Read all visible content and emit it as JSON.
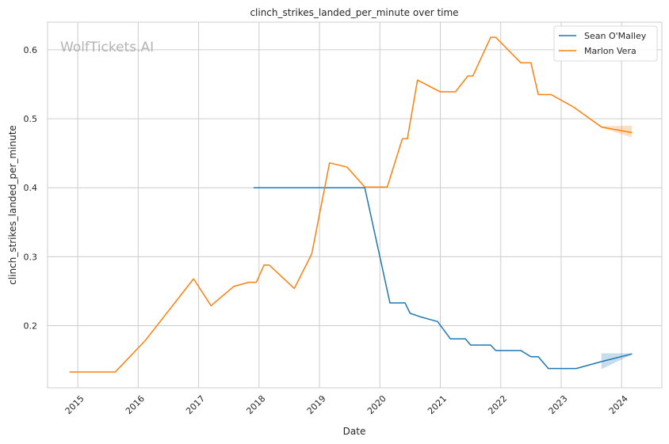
{
  "chart_data": {
    "type": "line",
    "title": "clinch_strikes_landed_per_minute over time",
    "xlabel": "Date",
    "ylabel": "clinch_strikes_landed_per_minute",
    "watermark": "WolfTickets.AI",
    "xlim": [
      "2014-07-01",
      "2024-09-01"
    ],
    "ylim": [
      0.11,
      0.64
    ],
    "x_ticks": [
      "2015",
      "2016",
      "2017",
      "2018",
      "2019",
      "2020",
      "2021",
      "2022",
      "2023",
      "2024"
    ],
    "y_ticks": [
      "0.2",
      "0.3",
      "0.4",
      "0.5",
      "0.6"
    ],
    "grid": true,
    "legend_position": "top-right",
    "series": [
      {
        "name": "Sean O'Malley",
        "color": "#1f77b4",
        "points": [
          [
            "2017-12-01",
            0.4
          ],
          [
            "2019-10-01",
            0.4
          ],
          [
            "2020-03-01",
            0.233
          ],
          [
            "2020-06-01",
            0.233
          ],
          [
            "2020-07-01",
            0.218
          ],
          [
            "2020-09-01",
            0.213
          ],
          [
            "2020-12-15",
            0.206
          ],
          [
            "2021-03-01",
            0.181
          ],
          [
            "2021-06-01",
            0.181
          ],
          [
            "2021-07-01",
            0.172
          ],
          [
            "2021-11-01",
            0.172
          ],
          [
            "2021-12-01",
            0.164
          ],
          [
            "2022-05-01",
            0.164
          ],
          [
            "2022-07-01",
            0.155
          ],
          [
            "2022-08-15",
            0.155
          ],
          [
            "2022-10-15",
            0.138
          ],
          [
            "2023-04-01",
            0.138
          ],
          [
            "2023-09-01",
            0.148
          ],
          [
            "2024-03-01",
            0.159
          ]
        ],
        "band": {
          "x": [
            "2023-09-01",
            "2024-03-01"
          ],
          "upper": [
            0.16,
            0.16
          ],
          "lower": [
            0.137,
            0.158
          ]
        }
      },
      {
        "name": "Marlon Vera",
        "color": "#ff7f0e",
        "points": [
          [
            "2014-11-15",
            0.133
          ],
          [
            "2015-08-15",
            0.133
          ],
          [
            "2016-02-15",
            0.179
          ],
          [
            "2016-12-01",
            0.268
          ],
          [
            "2017-03-15",
            0.229
          ],
          [
            "2017-08-01",
            0.257
          ],
          [
            "2017-11-01",
            0.263
          ],
          [
            "2017-12-15",
            0.263
          ],
          [
            "2018-02-01",
            0.288
          ],
          [
            "2018-03-01",
            0.288
          ],
          [
            "2018-08-01",
            0.254
          ],
          [
            "2018-11-15",
            0.304
          ],
          [
            "2019-03-01",
            0.436
          ],
          [
            "2019-06-15",
            0.43
          ],
          [
            "2019-10-01",
            0.401
          ],
          [
            "2020-02-15",
            0.401
          ],
          [
            "2020-05-15",
            0.471
          ],
          [
            "2020-06-15",
            0.471
          ],
          [
            "2020-08-15",
            0.556
          ],
          [
            "2021-01-01",
            0.539
          ],
          [
            "2021-04-01",
            0.539
          ],
          [
            "2021-06-15",
            0.562
          ],
          [
            "2021-07-15",
            0.562
          ],
          [
            "2021-11-01",
            0.618
          ],
          [
            "2021-12-01",
            0.618
          ],
          [
            "2022-05-01",
            0.581
          ],
          [
            "2022-07-01",
            0.581
          ],
          [
            "2022-08-15",
            0.535
          ],
          [
            "2022-11-01",
            0.535
          ],
          [
            "2023-03-15",
            0.517
          ],
          [
            "2023-09-01",
            0.488
          ],
          [
            "2024-03-01",
            0.48
          ]
        ],
        "band": {
          "x": [
            "2023-09-01",
            "2024-03-01"
          ],
          "upper": [
            0.489,
            0.49
          ],
          "lower": [
            0.487,
            0.473
          ]
        }
      }
    ]
  }
}
